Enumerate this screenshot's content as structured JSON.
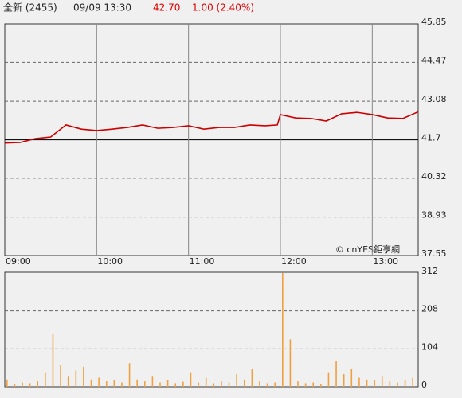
{
  "header": {
    "name": "全新 (2455)",
    "time": "09/09 13:30",
    "price": "42.70",
    "change": "1.00 (2.40%)"
  },
  "watermark": "© cnYES鉅亨網",
  "chart_data": [
    {
      "type": "line",
      "color": "#cc0000",
      "x": [
        "09:00",
        "09:10",
        "09:20",
        "09:30",
        "09:40",
        "09:50",
        "10:00",
        "10:10",
        "10:20",
        "10:30",
        "10:40",
        "10:50",
        "11:00",
        "11:10",
        "11:20",
        "11:30",
        "11:40",
        "11:50",
        "11:58",
        "12:00",
        "12:10",
        "12:20",
        "12:30",
        "12:40",
        "12:50",
        "13:00",
        "13:10",
        "13:20",
        "13:30"
      ],
      "values": [
        41.58,
        41.6,
        41.74,
        41.8,
        42.23,
        42.08,
        42.03,
        42.08,
        42.14,
        42.23,
        42.11,
        42.14,
        42.2,
        42.08,
        42.14,
        42.14,
        42.23,
        42.2,
        42.23,
        42.6,
        42.48,
        42.46,
        42.37,
        42.63,
        42.68,
        42.6,
        42.48,
        42.46,
        42.7
      ],
      "xlim": [
        "09:00",
        "13:30"
      ],
      "xticks": [
        "09:00",
        "10:00",
        "11:00",
        "12:00",
        "13:00"
      ],
      "ylim": [
        37.55,
        45.85
      ],
      "yticks": [
        37.55,
        38.93,
        40.32,
        41.7,
        43.08,
        44.47,
        45.85
      ],
      "reference": 41.7
    },
    {
      "type": "bar",
      "color": "#f0a040",
      "x": [
        "09:00",
        "09:05",
        "09:10",
        "09:15",
        "09:20",
        "09:25",
        "09:30",
        "09:35",
        "09:40",
        "09:45",
        "09:50",
        "09:55",
        "10:00",
        "10:05",
        "10:10",
        "10:15",
        "10:20",
        "10:25",
        "10:30",
        "10:35",
        "10:40",
        "10:45",
        "10:50",
        "10:55",
        "11:00",
        "11:05",
        "11:10",
        "11:15",
        "11:20",
        "11:25",
        "11:30",
        "11:35",
        "11:40",
        "11:45",
        "11:50",
        "11:55",
        "12:00",
        "12:05",
        "12:10",
        "12:15",
        "12:20",
        "12:25",
        "12:30",
        "12:35",
        "12:40",
        "12:45",
        "12:50",
        "12:55",
        "13:00",
        "13:05",
        "13:10",
        "13:15",
        "13:20",
        "13:25"
      ],
      "values": [
        20,
        8,
        12,
        10,
        15,
        40,
        146,
        60,
        30,
        45,
        55,
        20,
        25,
        15,
        18,
        12,
        65,
        20,
        15,
        30,
        12,
        18,
        10,
        14,
        40,
        12,
        25,
        10,
        15,
        12,
        35,
        20,
        50,
        15,
        10,
        12,
        312,
        130,
        15,
        10,
        12,
        8,
        40,
        70,
        35,
        50,
        25,
        20,
        18,
        30,
        15,
        12,
        20,
        25
      ],
      "xlim": [
        "09:00",
        "13:30"
      ],
      "ylim": [
        0,
        312
      ],
      "yticks": [
        0,
        104,
        208,
        312
      ]
    }
  ]
}
